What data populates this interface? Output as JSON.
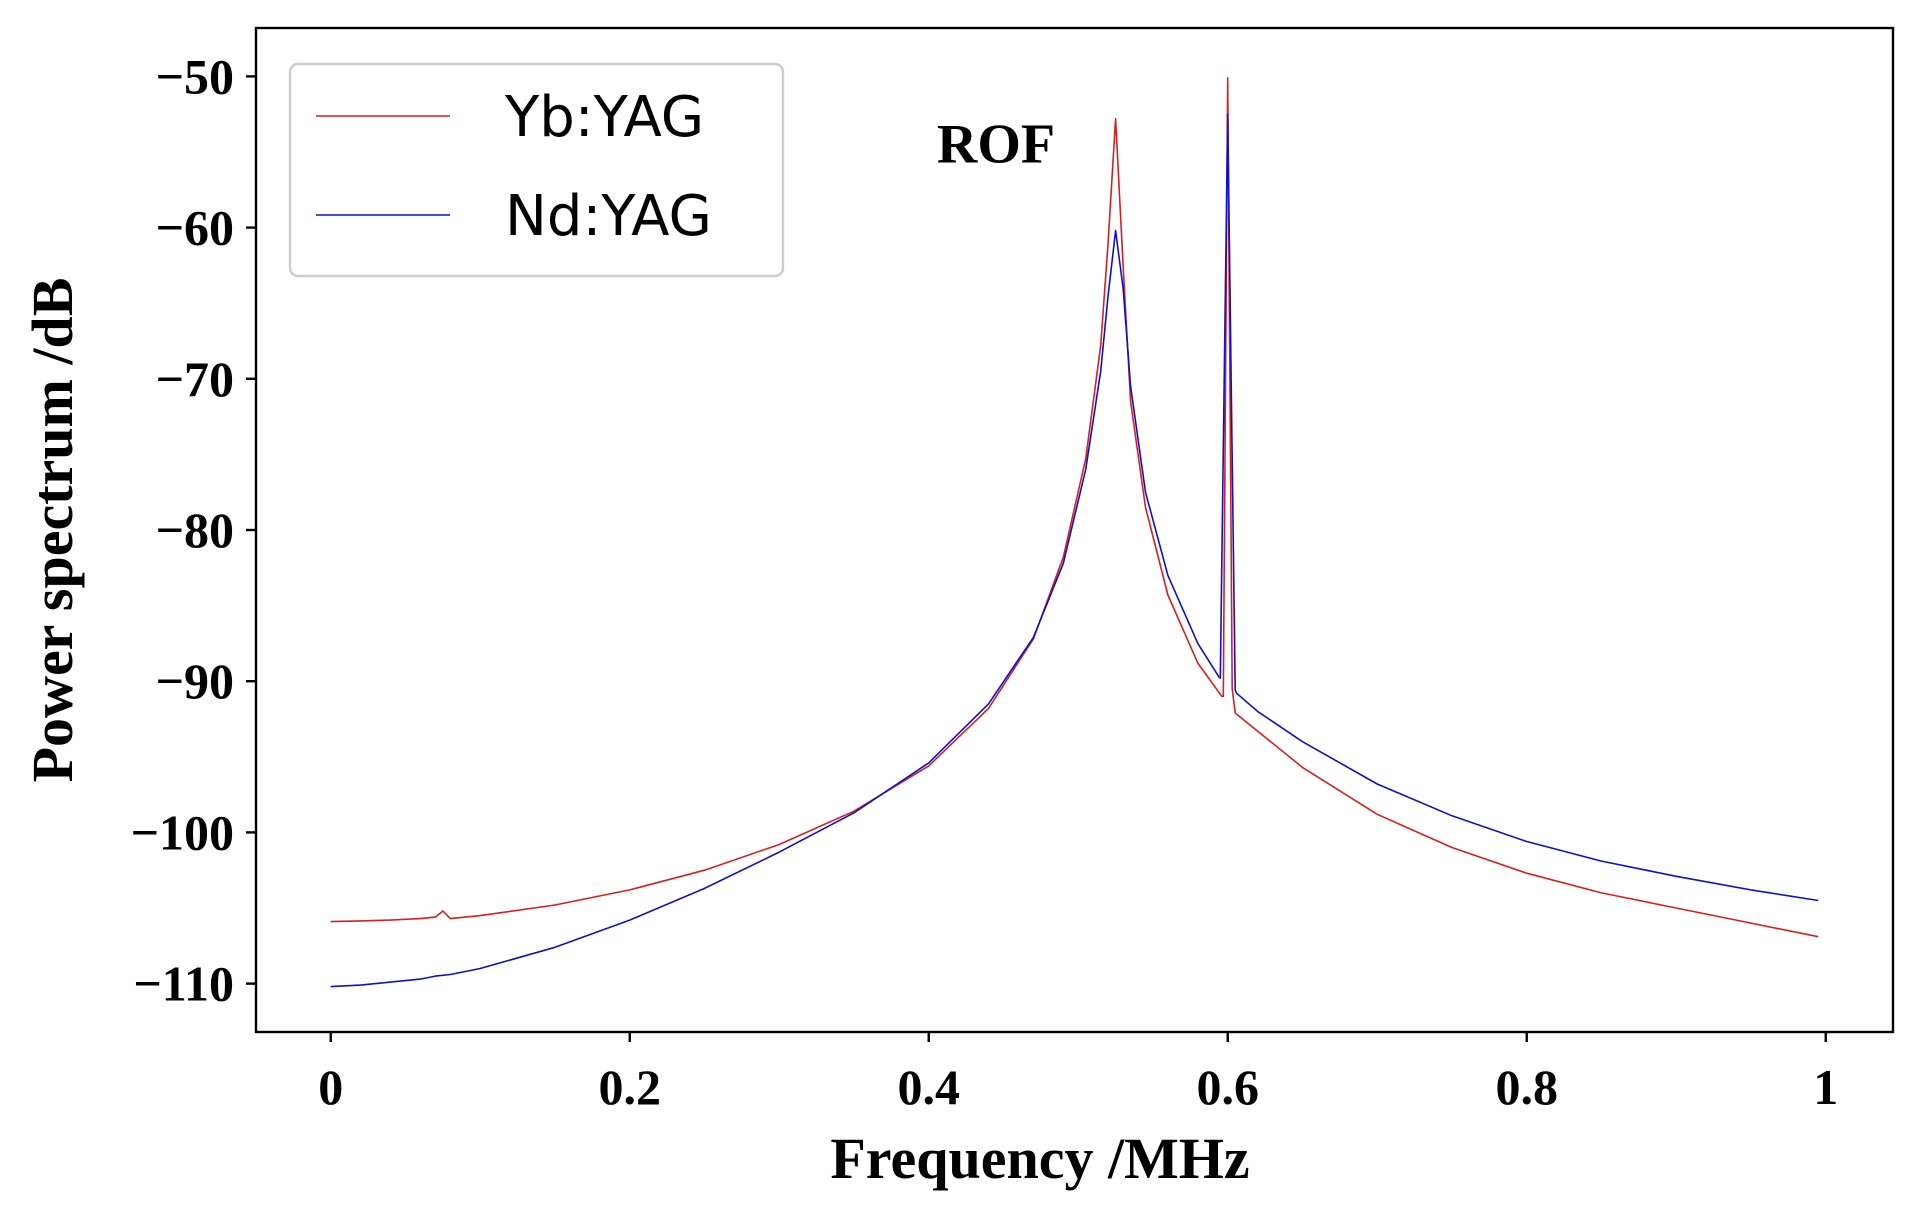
{
  "chart_data": {
    "type": "line",
    "title": "",
    "xlabel": "Frequency /MHz",
    "ylabel": "Power spectrum /dB",
    "xlim": [
      -0.05,
      1.045
    ],
    "ylim": [
      -113.2,
      -46.8
    ],
    "xticks": [
      0,
      0.2,
      0.4,
      0.6,
      0.8,
      1
    ],
    "xtick_labels": [
      "0",
      "0.2",
      "0.4",
      "0.6",
      "0.8",
      "1"
    ],
    "yticks": [
      -50,
      -60,
      -70,
      -80,
      -90,
      -100,
      -110
    ],
    "ytick_labels": [
      "−50",
      "−60",
      "−70",
      "−80",
      "−90",
      "−100",
      "−110"
    ],
    "grid": false,
    "legend_position": "top-left",
    "annotations": [
      {
        "text": "ROF",
        "x": 0.445,
        "y": -54.5
      }
    ],
    "series": [
      {
        "name": "Yb:YAG",
        "color": "#d62020",
        "x": [
          0,
          0.02,
          0.04,
          0.06,
          0.07,
          0.075,
          0.08,
          0.1,
          0.15,
          0.2,
          0.25,
          0.3,
          0.35,
          0.4,
          0.44,
          0.47,
          0.49,
          0.505,
          0.515,
          0.52,
          0.525,
          0.53,
          0.535,
          0.545,
          0.56,
          0.58,
          0.596,
          0.597,
          0.6,
          0.603,
          0.605,
          0.62,
          0.65,
          0.7,
          0.75,
          0.8,
          0.85,
          0.9,
          0.95,
          0.995
        ],
        "y": [
          -105.9,
          -105.85,
          -105.8,
          -105.7,
          -105.6,
          -105.2,
          -105.7,
          -105.5,
          -104.8,
          -103.8,
          -102.5,
          -100.8,
          -98.6,
          -95.6,
          -91.8,
          -87.2,
          -81.8,
          -75.3,
          -67.8,
          -61.0,
          -52.8,
          -62.5,
          -71.5,
          -78.5,
          -84.3,
          -88.8,
          -91.0,
          -91.0,
          -50.1,
          -90.5,
          -92.1,
          -93.3,
          -95.7,
          -98.8,
          -101.0,
          -102.7,
          -104.0,
          -105.0,
          -106.0,
          -106.9
        ]
      },
      {
        "name": "Nd:YAG",
        "color": "#1010c8",
        "x": [
          0,
          0.02,
          0.04,
          0.06,
          0.07,
          0.08,
          0.1,
          0.15,
          0.2,
          0.25,
          0.3,
          0.35,
          0.4,
          0.44,
          0.47,
          0.49,
          0.505,
          0.515,
          0.52,
          0.525,
          0.53,
          0.535,
          0.545,
          0.56,
          0.58,
          0.594,
          0.595,
          0.6,
          0.605,
          0.606,
          0.62,
          0.65,
          0.7,
          0.75,
          0.8,
          0.85,
          0.9,
          0.95,
          0.995
        ],
        "y": [
          -110.2,
          -110.1,
          -109.9,
          -109.7,
          -109.5,
          -109.4,
          -109.0,
          -107.6,
          -105.8,
          -103.7,
          -101.3,
          -98.7,
          -95.4,
          -91.5,
          -87.1,
          -82.2,
          -76.0,
          -69.5,
          -64.5,
          -60.2,
          -64.0,
          -70.5,
          -77.5,
          -83.0,
          -87.5,
          -89.7,
          -89.8,
          -52.5,
          -90.6,
          -90.8,
          -92.0,
          -94.0,
          -96.8,
          -98.9,
          -100.6,
          -101.9,
          -102.9,
          -103.8,
          -104.5
        ]
      }
    ]
  }
}
